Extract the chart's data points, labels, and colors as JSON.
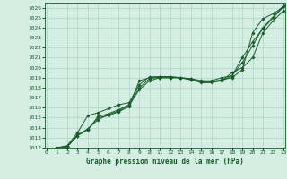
{
  "title": "Graphe pression niveau de la mer (hPa)",
  "xlim": [
    -0.2,
    23.2
  ],
  "ylim": [
    1012,
    1026.5
  ],
  "xticks": [
    0,
    1,
    2,
    3,
    4,
    5,
    6,
    7,
    8,
    9,
    10,
    11,
    12,
    13,
    14,
    15,
    16,
    17,
    18,
    19,
    20,
    21,
    22,
    23
  ],
  "yticks": [
    1012,
    1013,
    1014,
    1015,
    1016,
    1017,
    1018,
    1019,
    1020,
    1021,
    1022,
    1023,
    1024,
    1025,
    1026
  ],
  "background_color": "#d4eee4",
  "grid_color": "#b0d4c4",
  "line_color": "#1a5c2a",
  "marker_color": "#1a5c2a",
  "series": [
    [
      1012.0,
      1012.1,
      1013.3,
      1013.8,
      1015.0,
      1015.2,
      1015.6,
      1016.1,
      1018.7,
      1019.0,
      1019.0,
      1019.0,
      1019.0,
      1018.8,
      1018.6,
      1018.6,
      1018.8,
      1019.0,
      1019.8,
      1023.5,
      1024.9,
      1025.4,
      1026.1
    ],
    [
      1012.0,
      1012.1,
      1013.2,
      1013.9,
      1014.8,
      1015.3,
      1015.7,
      1016.2,
      1017.8,
      1018.7,
      1019.0,
      1019.0,
      1019.0,
      1018.9,
      1018.7,
      1018.7,
      1019.0,
      1019.2,
      1020.5,
      1022.2,
      1024.0,
      1025.1,
      1026.2
    ],
    [
      1012.0,
      1012.1,
      1013.2,
      1013.8,
      1015.1,
      1015.4,
      1015.8,
      1016.3,
      1018.0,
      1018.9,
      1019.1,
      1019.1,
      1019.0,
      1018.9,
      1018.6,
      1018.6,
      1018.7,
      1019.2,
      1021.0,
      1022.6,
      1023.9,
      1025.0,
      1026.1
    ],
    [
      1012.0,
      1012.2,
      1013.5,
      1015.2,
      1015.5,
      1015.9,
      1016.3,
      1016.5,
      1018.3,
      1019.1,
      1019.1,
      1019.1,
      1019.0,
      1018.8,
      1018.5,
      1018.5,
      1018.7,
      1019.5,
      1020.0,
      1021.0,
      1023.5,
      1024.7,
      1025.7
    ]
  ]
}
